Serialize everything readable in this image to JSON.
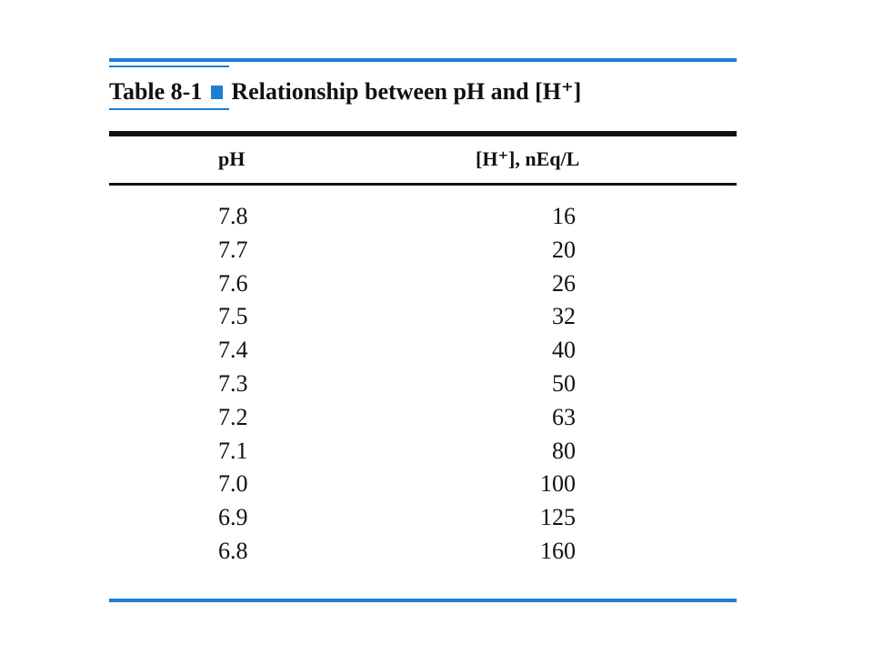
{
  "table": {
    "label": "Table 8-1",
    "title": "Relationship between pH and [H⁺]",
    "headers": {
      "ph": "pH",
      "h_conc": "[H⁺], nEq/L"
    },
    "rows": [
      {
        "ph": "7.8",
        "h": "16"
      },
      {
        "ph": "7.7",
        "h": "20"
      },
      {
        "ph": "7.6",
        "h": "26"
      },
      {
        "ph": "7.5",
        "h": "32"
      },
      {
        "ph": "7.4",
        "h": "40"
      },
      {
        "ph": "7.3",
        "h": "50"
      },
      {
        "ph": "7.2",
        "h": "63"
      },
      {
        "ph": "7.1",
        "h": "80"
      },
      {
        "ph": "7.0",
        "h": "100"
      },
      {
        "ph": "6.9",
        "h": "125"
      },
      {
        "ph": "6.8",
        "h": "160"
      }
    ]
  },
  "colors": {
    "accent": "#1e7fd0",
    "text": "#111111"
  }
}
